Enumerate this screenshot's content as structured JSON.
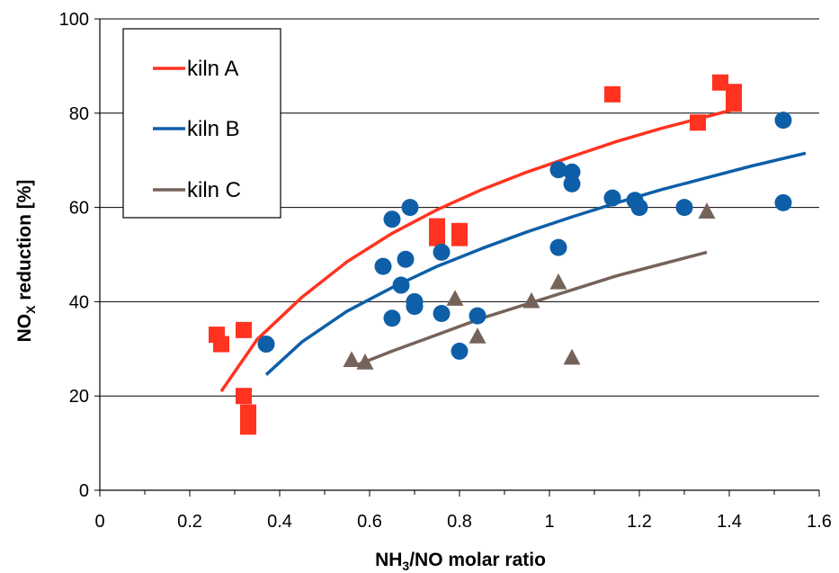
{
  "chart_data": {
    "type": "scatter",
    "xlabel": "NH3/NO molar ratio",
    "xlabel_main": "NH",
    "xlabel_sub": "3",
    "xlabel_rest": "/NO molar ratio",
    "ylabel": "NOX reduction [%]",
    "ylabel_main": "NO",
    "ylabel_sub": "X",
    "ylabel_rest": " reduction [%]",
    "xlim": [
      0,
      1.6
    ],
    "ylim": [
      0,
      100
    ],
    "x_ticks": [
      "0",
      "0.2",
      "0.4",
      "0.6",
      "0.8",
      "1",
      "1.2",
      "1.4",
      "1.6"
    ],
    "y_ticks": [
      "0",
      "20",
      "40",
      "60",
      "80",
      "100"
    ],
    "grid": "horizontal",
    "legend_position": "top-left",
    "series": [
      {
        "name": "kiln A",
        "marker": "square",
        "color": "#ff3320",
        "points": [
          [
            0.26,
            33
          ],
          [
            0.27,
            31
          ],
          [
            0.32,
            34
          ],
          [
            0.32,
            20
          ],
          [
            0.33,
            16.5
          ],
          [
            0.33,
            13.5
          ],
          [
            0.75,
            56
          ],
          [
            0.75,
            53.5
          ],
          [
            0.8,
            55
          ],
          [
            0.8,
            53.5
          ],
          [
            1.14,
            84
          ],
          [
            1.33,
            78
          ],
          [
            1.38,
            86.5
          ],
          [
            1.41,
            84.5
          ],
          [
            1.41,
            82
          ]
        ],
        "fit": [
          [
            0.27,
            21
          ],
          [
            0.35,
            32
          ],
          [
            0.45,
            41
          ],
          [
            0.55,
            48.5
          ],
          [
            0.65,
            54.5
          ],
          [
            0.75,
            59.5
          ],
          [
            0.85,
            63.8
          ],
          [
            0.95,
            67.5
          ],
          [
            1.05,
            70.8
          ],
          [
            1.15,
            74
          ],
          [
            1.25,
            76.8
          ],
          [
            1.35,
            79.3
          ],
          [
            1.42,
            81
          ]
        ]
      },
      {
        "name": "kiln B",
        "marker": "circle",
        "color": "#0e5fa8",
        "points": [
          [
            0.37,
            31
          ],
          [
            0.63,
            47.5
          ],
          [
            0.65,
            57.5
          ],
          [
            0.65,
            36.5
          ],
          [
            0.67,
            43.5
          ],
          [
            0.68,
            49
          ],
          [
            0.69,
            60
          ],
          [
            0.7,
            40
          ],
          [
            0.7,
            39
          ],
          [
            0.76,
            50.5
          ],
          [
            0.76,
            37.5
          ],
          [
            0.8,
            29.5
          ],
          [
            0.84,
            37
          ],
          [
            1.02,
            68
          ],
          [
            1.02,
            51.5
          ],
          [
            1.05,
            67.5
          ],
          [
            1.05,
            65
          ],
          [
            1.14,
            62
          ],
          [
            1.19,
            61.5
          ],
          [
            1.2,
            60
          ],
          [
            1.3,
            60
          ],
          [
            1.52,
            78.5
          ],
          [
            1.52,
            61
          ]
        ],
        "fit": [
          [
            0.37,
            24.5
          ],
          [
            0.45,
            31.5
          ],
          [
            0.55,
            38
          ],
          [
            0.65,
            43
          ],
          [
            0.75,
            47.5
          ],
          [
            0.85,
            51.3
          ],
          [
            0.95,
            54.8
          ],
          [
            1.05,
            58
          ],
          [
            1.15,
            61
          ],
          [
            1.25,
            63.8
          ],
          [
            1.35,
            66.3
          ],
          [
            1.45,
            68.8
          ],
          [
            1.57,
            71.5
          ]
        ]
      },
      {
        "name": "kiln C",
        "marker": "triangle",
        "color": "#75635a",
        "points": [
          [
            0.56,
            27.5
          ],
          [
            0.59,
            27
          ],
          [
            0.79,
            40.5
          ],
          [
            0.84,
            32.5
          ],
          [
            0.96,
            40
          ],
          [
            1.02,
            44
          ],
          [
            1.05,
            28
          ],
          [
            1.35,
            59
          ]
        ],
        "fit": [
          [
            0.57,
            26.5
          ],
          [
            0.65,
            29.5
          ],
          [
            0.75,
            33
          ],
          [
            0.85,
            36.5
          ],
          [
            0.95,
            39.5
          ],
          [
            1.05,
            42.5
          ],
          [
            1.15,
            45.5
          ],
          [
            1.25,
            48
          ],
          [
            1.35,
            50.5
          ]
        ]
      }
    ]
  }
}
